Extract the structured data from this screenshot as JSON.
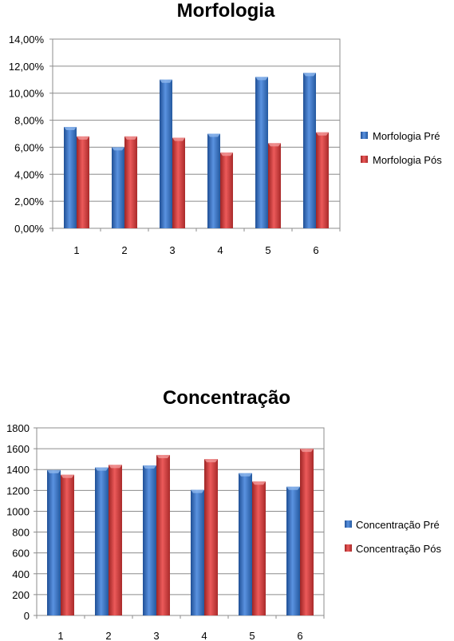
{
  "chart_data": [
    {
      "type": "bar",
      "title": "Morfologia",
      "xlabel": "",
      "ylabel": "",
      "categories": [
        "1",
        "2",
        "3",
        "4",
        "5",
        "6"
      ],
      "series": [
        {
          "name": "Morfologia Pré",
          "color": "#3a73c4",
          "values": [
            0.075,
            0.06,
            0.11,
            0.07,
            0.112,
            0.115
          ]
        },
        {
          "name": "Morfologia Pós",
          "color": "#d23d3d",
          "values": [
            0.068,
            0.068,
            0.067,
            0.056,
            0.063,
            0.071
          ]
        }
      ],
      "ylim": [
        0,
        0.14
      ],
      "yticks": [
        0,
        0.02,
        0.04,
        0.06,
        0.08,
        0.1,
        0.12,
        0.14
      ],
      "ytick_labels": [
        "0,00%",
        "2,00%",
        "4,00%",
        "6,00%",
        "8,00%",
        "10,00%",
        "12,00%",
        "14,00%"
      ],
      "grid": true,
      "legend": "right"
    },
    {
      "type": "bar",
      "title": "Concentração",
      "xlabel": "",
      "ylabel": "",
      "categories": [
        "1",
        "2",
        "3",
        "4",
        "5",
        "6"
      ],
      "series": [
        {
          "name": "Concentração Pré",
          "color": "#3a73c4",
          "values": [
            1395,
            1420,
            1440,
            1205,
            1365,
            1235
          ]
        },
        {
          "name": "Concentração Pós",
          "color": "#d23d3d",
          "values": [
            1350,
            1445,
            1540,
            1500,
            1285,
            1600
          ]
        }
      ],
      "ylim": [
        0,
        1800
      ],
      "yticks": [
        0,
        200,
        400,
        600,
        800,
        1000,
        1200,
        1400,
        1600,
        1800
      ],
      "ytick_labels": [
        "0",
        "200",
        "400",
        "600",
        "800",
        "1000",
        "1200",
        "1400",
        "1600",
        "1800"
      ],
      "grid": true,
      "legend": "right"
    }
  ]
}
